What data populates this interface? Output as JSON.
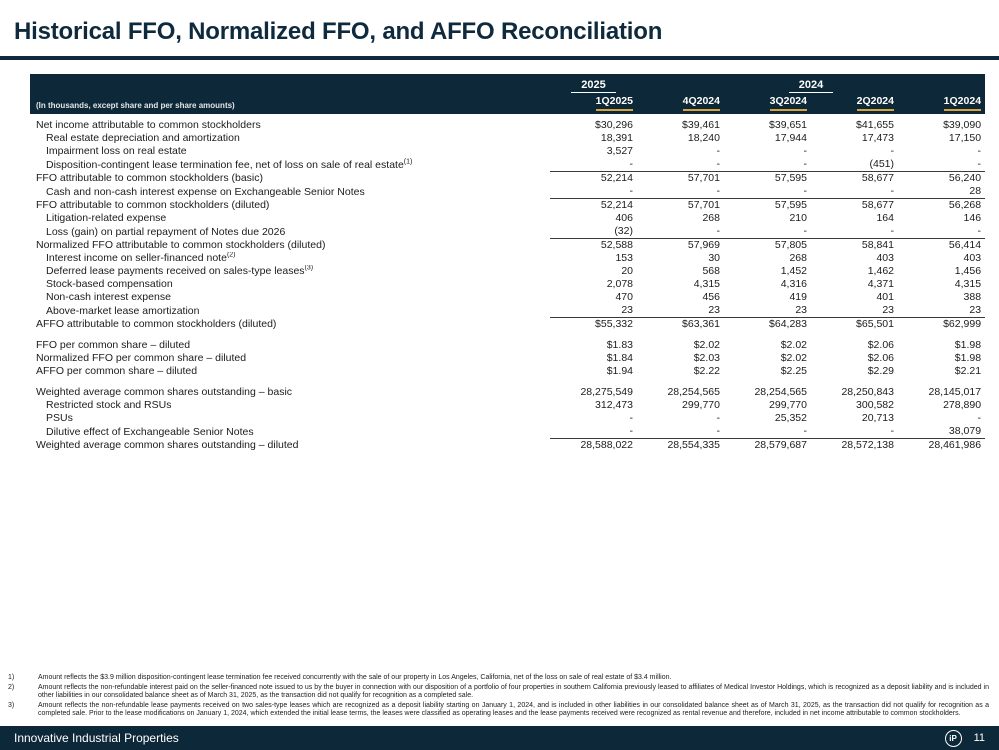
{
  "page": {
    "title": "Historical FFO, Normalized FFO, and AFFO Reconciliation",
    "footer_brand": "Innovative Industrial Properties",
    "logo_text": "iP",
    "page_number": "11"
  },
  "colors": {
    "navy": "#0d2838",
    "gold": "#d9a43b"
  },
  "table": {
    "caption": "(In thousands, except share and per share amounts)",
    "year_groups": [
      {
        "label": "2025",
        "span": 1
      },
      {
        "label": "2024",
        "span": 4
      }
    ],
    "columns": [
      "1Q2025",
      "4Q2024",
      "3Q2024",
      "2Q2024",
      "1Q2024"
    ],
    "rows": [
      {
        "label": "Net income attributable to common stockholders",
        "values": [
          "$30,296",
          "$39,461",
          "$39,651",
          "$41,655",
          "$39,090"
        ]
      },
      {
        "label": "Real estate depreciation and amortization",
        "indent": true,
        "values": [
          "18,391",
          "18,240",
          "17,944",
          "17,473",
          "17,150"
        ]
      },
      {
        "label": "Impairment loss on real estate",
        "indent": true,
        "values": [
          "3,527",
          "-",
          "-",
          "-",
          "-"
        ]
      },
      {
        "label": "Disposition-contingent lease termination fee, net of loss on sale of real estate",
        "sup": "(1)",
        "indent": true,
        "values": [
          "-",
          "-",
          "-",
          "(451)",
          "-"
        ]
      },
      {
        "label": "FFO attributable to common stockholders (basic)",
        "rule": true,
        "values": [
          "52,214",
          "57,701",
          "57,595",
          "58,677",
          "56,240"
        ]
      },
      {
        "label": "Cash and non-cash interest expense on Exchangeable Senior Notes",
        "indent": true,
        "values": [
          "-",
          "-",
          "-",
          "-",
          "28"
        ]
      },
      {
        "label": "FFO attributable to common stockholders (diluted)",
        "rule": true,
        "values": [
          "52,214",
          "57,701",
          "57,595",
          "58,677",
          "56,268"
        ]
      },
      {
        "label": "Litigation-related expense",
        "indent": true,
        "values": [
          "406",
          "268",
          "210",
          "164",
          "146"
        ]
      },
      {
        "label": "Loss (gain) on partial repayment of Notes due 2026",
        "indent": true,
        "values": [
          "(32)",
          "-",
          "-",
          "-",
          "-"
        ]
      },
      {
        "label": "Normalized FFO attributable to common stockholders (diluted)",
        "rule": true,
        "values": [
          "52,588",
          "57,969",
          "57,805",
          "58,841",
          "56,414"
        ]
      },
      {
        "label": "Interest income on seller-financed note",
        "sup": "(2)",
        "indent": true,
        "values": [
          "153",
          "30",
          "268",
          "403",
          "403"
        ]
      },
      {
        "label": "Deferred lease payments received on sales-type leases",
        "sup": "(3)",
        "indent": true,
        "values": [
          "20",
          "568",
          "1,452",
          "1,462",
          "1,456"
        ]
      },
      {
        "label": "Stock-based compensation",
        "indent": true,
        "values": [
          "2,078",
          "4,315",
          "4,316",
          "4,371",
          "4,315"
        ]
      },
      {
        "label": "Non-cash interest expense",
        "indent": true,
        "values": [
          "470",
          "456",
          "419",
          "401",
          "388"
        ]
      },
      {
        "label": "Above-market lease amortization",
        "indent": true,
        "values": [
          "23",
          "23",
          "23",
          "23",
          "23"
        ]
      },
      {
        "label": "AFFO attributable to common stockholders (diluted)",
        "rule": true,
        "values": [
          "$55,332",
          "$63,361",
          "$64,283",
          "$65,501",
          "$62,999"
        ]
      },
      {
        "label": "FFO per common share – diluted",
        "spacer": true,
        "values": [
          "$1.83",
          "$2.02",
          "$2.02",
          "$2.06",
          "$1.98"
        ]
      },
      {
        "label": "Normalized FFO per common share – diluted",
        "values": [
          "$1.84",
          "$2.03",
          "$2.02",
          "$2.06",
          "$1.98"
        ]
      },
      {
        "label": "AFFO per common share – diluted",
        "values": [
          "$1.94",
          "$2.22",
          "$2.25",
          "$2.29",
          "$2.21"
        ]
      },
      {
        "label": "Weighted average common shares outstanding – basic",
        "spacer": true,
        "values": [
          "28,275,549",
          "28,254,565",
          "28,254,565",
          "28,250,843",
          "28,145,017"
        ]
      },
      {
        "label": "Restricted stock and RSUs",
        "indent": true,
        "values": [
          "312,473",
          "299,770",
          "299,770",
          "300,582",
          "278,890"
        ]
      },
      {
        "label": "PSUs",
        "indent": true,
        "values": [
          "-",
          "-",
          "25,352",
          "20,713",
          "-"
        ]
      },
      {
        "label": "Dilutive effect of Exchangeable Senior Notes",
        "indent": true,
        "values": [
          "-",
          "-",
          "-",
          "-",
          "38,079"
        ]
      },
      {
        "label": "Weighted average common shares outstanding – diluted",
        "rule": true,
        "values": [
          "28,588,022",
          "28,554,335",
          "28,579,687",
          "28,572,138",
          "28,461,986"
        ]
      }
    ]
  },
  "footnotes": [
    {
      "num": "1)",
      "text": "Amount reflects the $3.9 million disposition-contingent lease termination fee received concurrently with the sale of our property in Los Angeles, California, net of the loss on sale of real estate of $3.4 million."
    },
    {
      "num": "2)",
      "text": "Amount reflects the non-refundable interest paid on the seller-financed note issued to us by the buyer in connection with our disposition of a portfolio of four properties in southern California previously leased to affiliates of Medical Investor Holdings, which is recognized as a deposit liability and is included in other liabilities in our consolidated balance sheet as of March 31, 2025, as the transaction did not qualify for recognition as a completed sale."
    },
    {
      "num": "3)",
      "text": "Amount reflects the non-refundable lease payments received on two sales-type leases which are recognized as a deposit liability starting on January 1, 2024, and is included in other liabilities in our consolidated balance sheet as of March 31, 2025, as the transaction did not qualify for recognition as a completed sale. Prior to the lease modifications on January 1, 2024, which extended the initial lease terms, the leases were classified as operating leases and the lease payments received were recognized as rental revenue and therefore, included in net income attributable to common stockholders."
    }
  ]
}
